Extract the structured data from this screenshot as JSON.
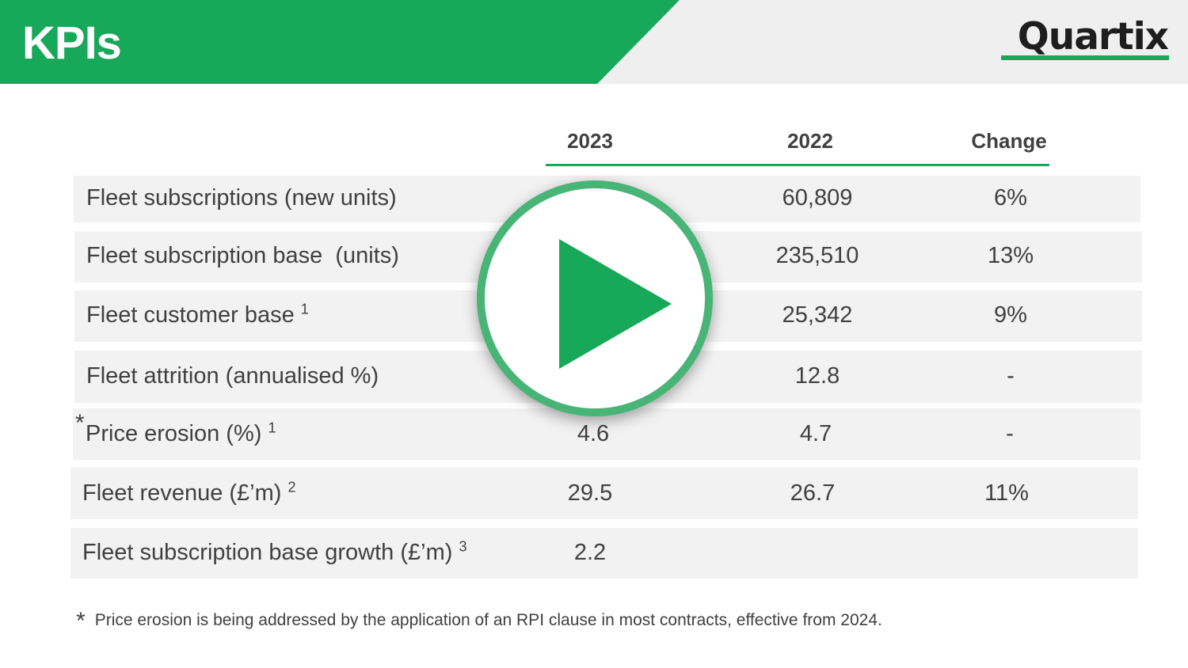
{
  "header": {
    "title": "KPIs",
    "logo": "Quartix"
  },
  "columns": [
    "2023",
    "2022",
    "Change"
  ],
  "rows": [
    {
      "label": "Fleet subscriptions (new units)",
      "sup": "",
      "v2023": "",
      "v2022": "60,809",
      "change": "6%"
    },
    {
      "label": "Fleet subscription base  (units)",
      "sup": "",
      "v2023": "",
      "v2022": "235,510",
      "change": "13%"
    },
    {
      "label": "Fleet customer base",
      "sup": "1",
      "v2023": "",
      "v2022": "25,342",
      "change": "9%"
    },
    {
      "label": "Fleet attrition (annualised %)",
      "sup": "",
      "v2023": "",
      "v2022": "12.8",
      "change": "-"
    },
    {
      "label": "Price erosion (%)",
      "sup": "1",
      "v2023": "4.6",
      "v2022": "4.7",
      "change": "-"
    },
    {
      "label": "Fleet revenue (£’m)",
      "sup": "2",
      "v2023": "29.5",
      "v2022": "26.7",
      "change": "11%"
    },
    {
      "label": "Fleet subscription base growth (£’m)",
      "sup": "3",
      "v2023": "2.2",
      "v2022": "",
      "change": ""
    }
  ],
  "row_marker": "*",
  "footnote": {
    "marker": "*",
    "text": "Price erosion is being addressed by the application of an RPI clause in most contracts, effective from 2024."
  },
  "colors": {
    "brand_green": "#17a85a",
    "row_bg": "#f2f2f2",
    "text": "#404040"
  },
  "overlay": {
    "icon": "play-icon"
  }
}
